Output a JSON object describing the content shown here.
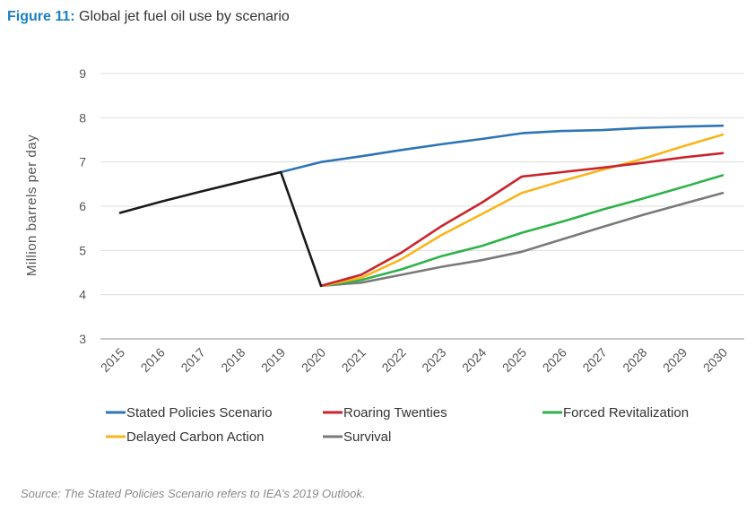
{
  "figure": {
    "label": "Figure 11:",
    "title": "Global jet fuel oil use by scenario",
    "source": "Source: The Stated Policies Scenario refers to IEA’s 2019 Outlook."
  },
  "chart_data": {
    "type": "line",
    "title": "Global jet fuel oil use by scenario",
    "xlabel": "",
    "ylabel": "Million barrels per day",
    "ylim": [
      3,
      9
    ],
    "yticks": [
      3,
      4,
      5,
      6,
      7,
      8,
      9
    ],
    "grid": true,
    "legend_position": "bottom",
    "x": [
      "2015",
      "2016",
      "2017",
      "2018",
      "2019",
      "2020",
      "2021",
      "2022",
      "2023",
      "2024",
      "2025",
      "2026",
      "2027",
      "2028",
      "2029",
      "2030"
    ],
    "history": {
      "color": "#1a1a1a",
      "x": [
        "2015",
        "2016",
        "2017",
        "2018",
        "2019",
        "2020"
      ],
      "values": [
        5.85,
        6.1,
        6.33,
        6.55,
        6.77,
        4.2
      ]
    },
    "series": [
      {
        "name": "Stated Policies Scenario",
        "color": "#2e75b6",
        "x": [
          "2019",
          "2020",
          "2021",
          "2022",
          "2023",
          "2024",
          "2025",
          "2026",
          "2027",
          "2028",
          "2029",
          "2030"
        ],
        "values": [
          6.77,
          7.0,
          7.13,
          7.27,
          7.4,
          7.52,
          7.65,
          7.7,
          7.72,
          7.77,
          7.8,
          7.82
        ]
      },
      {
        "name": "Roaring Twenties",
        "color": "#c9252c",
        "x": [
          "2020",
          "2021",
          "2022",
          "2023",
          "2024",
          "2025",
          "2026",
          "2027",
          "2028",
          "2029",
          "2030"
        ],
        "values": [
          4.2,
          4.45,
          4.95,
          5.55,
          6.08,
          6.67,
          6.77,
          6.87,
          6.98,
          7.1,
          7.2
        ]
      },
      {
        "name": "Forced Revitalization",
        "color": "#2db34a",
        "x": [
          "2020",
          "2021",
          "2022",
          "2023",
          "2024",
          "2025",
          "2026",
          "2027",
          "2028",
          "2029",
          "2030"
        ],
        "values": [
          4.2,
          4.33,
          4.57,
          4.87,
          5.1,
          5.4,
          5.65,
          5.92,
          6.17,
          6.43,
          6.7
        ]
      },
      {
        "name": "Delayed Carbon Action",
        "color": "#f8b51d",
        "x": [
          "2020",
          "2021",
          "2022",
          "2023",
          "2024",
          "2025",
          "2026",
          "2027",
          "2028",
          "2029",
          "2030"
        ],
        "values": [
          4.2,
          4.38,
          4.8,
          5.35,
          5.82,
          6.3,
          6.57,
          6.82,
          7.07,
          7.35,
          7.62
        ]
      },
      {
        "name": "Survival",
        "color": "#7a7a7a",
        "x": [
          "2020",
          "2021",
          "2022",
          "2023",
          "2024",
          "2025",
          "2026",
          "2027",
          "2028",
          "2029",
          "2030"
        ],
        "values": [
          4.2,
          4.27,
          4.45,
          4.63,
          4.78,
          4.97,
          5.25,
          5.53,
          5.8,
          6.05,
          6.3
        ]
      }
    ]
  }
}
